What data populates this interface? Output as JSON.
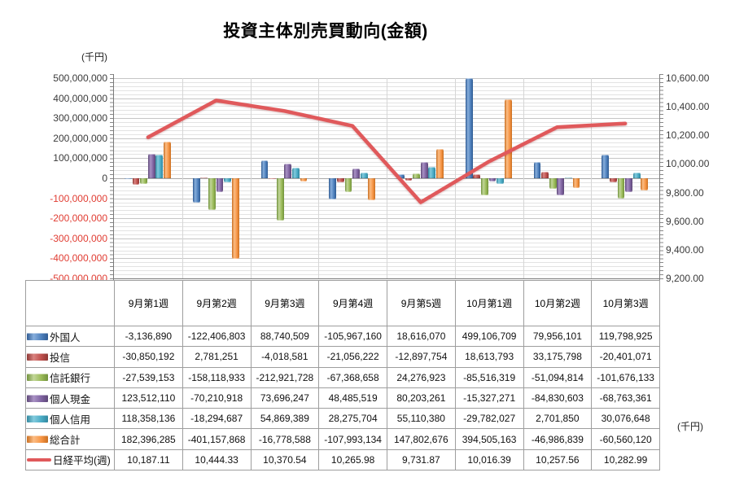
{
  "title": "投資主体別売買動向(金額)",
  "left_axis": {
    "unit": "(千円)",
    "max": 500000000,
    "min": -500000000,
    "major_step": 100000000,
    "minor_step": 20000000,
    "tick_labels": [
      "500,000,000",
      "400,000,000",
      "300,000,000",
      "200,000,000",
      "100,000,000",
      "0",
      "-100,000,000",
      "-200,000,000",
      "-300,000,000",
      "-400,000,000",
      "-500,000,000"
    ],
    "negative_label_color": "#e03c32"
  },
  "right_axis": {
    "unit": "(千円)",
    "max": 10600,
    "min": 9200,
    "major_step": 200,
    "tick_labels": [
      "10,600.00",
      "10,400.00",
      "10,200.00",
      "10,000.00",
      "9,800.00",
      "9,600.00",
      "9,400.00",
      "9,200.00"
    ]
  },
  "chart_data": {
    "type": "combo-bar-line",
    "title": "投資主体別売買動向(金額)",
    "categories": [
      "9月第1週",
      "9月第2週",
      "9月第3週",
      "9月第4週",
      "9月第5週",
      "10月第1週",
      "10月第2週",
      "10月第3週"
    ],
    "left_axis_range": [
      -500000000,
      500000000
    ],
    "right_axis_range": [
      9200,
      10600
    ],
    "grid": true,
    "legend_position": "table-left-column",
    "series": [
      {
        "name": "外国人",
        "type": "bar",
        "axis": "left",
        "color": "#4F81BD",
        "color_dark": "#2F5B93",
        "color_light": "#87AEDC",
        "values": [
          -3136890,
          -122406803,
          88740509,
          -105967160,
          18616070,
          499106709,
          79956101,
          119798925
        ],
        "display": [
          "-3,136,890",
          "-122,406,803",
          "88,740,509",
          "-105,967,160",
          "18,616,070",
          "499,106,709",
          "79,956,101",
          "119,798,925"
        ]
      },
      {
        "name": "投信",
        "type": "bar",
        "axis": "left",
        "color": "#C0504D",
        "color_dark": "#8E3734",
        "color_light": "#D98380",
        "values": [
          -30850192,
          2781251,
          -4018581,
          -21056222,
          -12897754,
          18613793,
          33175798,
          -20401071
        ],
        "display": [
          "-30,850,192",
          "2,781,251",
          "-4,018,581",
          "-21,056,222",
          "-12,897,754",
          "18,613,793",
          "33,175,798",
          "-20,401,071"
        ]
      },
      {
        "name": "信託銀行",
        "type": "bar",
        "axis": "left",
        "color": "#9BBB59",
        "color_dark": "#71923C",
        "color_light": "#C2D699",
        "values": [
          -27539153,
          -158118933,
          -212921728,
          -67368658,
          24276923,
          -85516319,
          -51094814,
          -101676133
        ],
        "display": [
          "-27,539,153",
          "-158,118,933",
          "-212,921,728",
          "-67,368,658",
          "24,276,923",
          "-85,516,319",
          "-51,094,814",
          "-101,676,133"
        ]
      },
      {
        "name": "個人現金",
        "type": "bar",
        "axis": "left",
        "color": "#8064A2",
        "color_dark": "#5D4777",
        "color_light": "#A992C4",
        "values": [
          123512110,
          -70210918,
          73696247,
          48485519,
          80203261,
          -15327271,
          -84830603,
          -68763361
        ],
        "display": [
          "123,512,110",
          "-70,210,918",
          "73,696,247",
          "48,485,519",
          "80,203,261",
          "-15,327,271",
          "-84,830,603",
          "-68,763,361"
        ]
      },
      {
        "name": "個人信用",
        "type": "bar",
        "axis": "left",
        "color": "#4BACC6",
        "color_dark": "#31879E",
        "color_light": "#83CBDD",
        "values": [
          118358136,
          -18294687,
          54869389,
          28275704,
          55110380,
          -29782027,
          2701850,
          30076648
        ],
        "display": [
          "118,358,136",
          "-18,294,687",
          "54,869,389",
          "28,275,704",
          "55,110,380",
          "-29,782,027",
          "2,701,850",
          "30,076,648"
        ]
      },
      {
        "name": "総合計",
        "type": "bar",
        "axis": "left",
        "color": "#F79646",
        "color_dark": "#CA6F21",
        "color_light": "#FBBC84",
        "values": [
          182396285,
          -401157868,
          -16778588,
          -107993134,
          147802676,
          394505163,
          -46986839,
          -60560120
        ],
        "display": [
          "182,396,285",
          "-401,157,868",
          "-16,778,588",
          "-107,993,134",
          "147,802,676",
          "394,505,163",
          "-46,986,839",
          "-60,560,120"
        ]
      },
      {
        "name": "日経平均(週)",
        "type": "line",
        "axis": "right",
        "color": "#E0595B",
        "values": [
          10187.11,
          10444.33,
          10370.54,
          10265.98,
          9731.87,
          10016.39,
          10257.56,
          10282.99
        ],
        "display": [
          "10,187.11",
          "10,444.33",
          "10,370.54",
          "10,265.98",
          "9,731.87",
          "10,016.39",
          "10,257.56",
          "10,282.99"
        ]
      }
    ]
  }
}
